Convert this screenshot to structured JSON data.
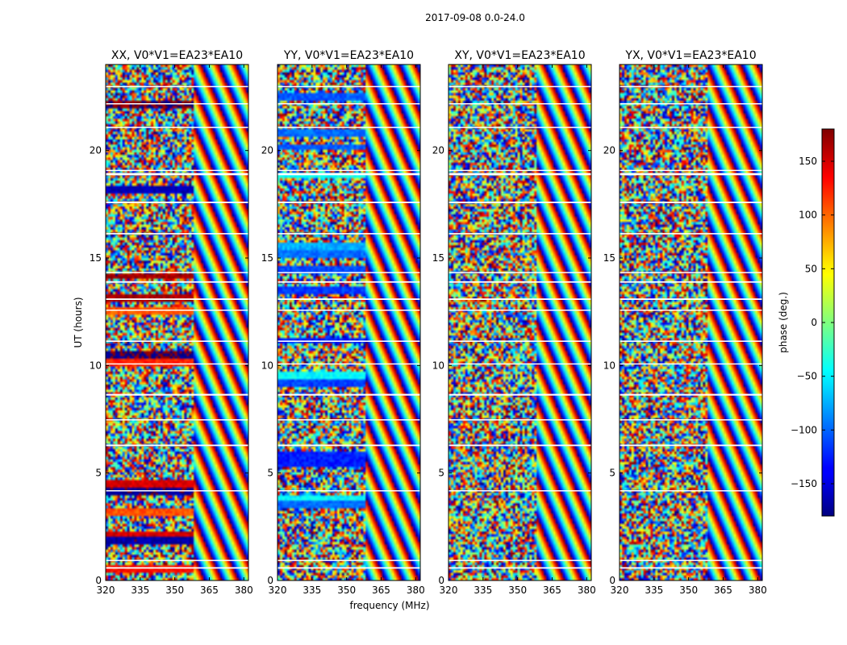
{
  "chart_data": {
    "type": "heatmap",
    "suptitle": "2017-09-08 0.0-24.0",
    "xlabel": "frequency (MHz)",
    "ylabel": "UT (hours)",
    "xlim": [
      320,
      382
    ],
    "ylim": [
      0,
      24
    ],
    "xticks": [
      320,
      335,
      350,
      365,
      380
    ],
    "yticks": [
      0,
      5,
      10,
      15,
      20
    ],
    "panels": [
      {
        "title": "XX, V0*V1=EA23*EA10",
        "pol": "XX"
      },
      {
        "title": "YY, V0*V1=EA23*EA10",
        "pol": "YY"
      },
      {
        "title": "XY, V0*V1=EA23*EA10",
        "pol": "XY"
      },
      {
        "title": "YX, V0*V1=EA23*EA10",
        "pol": "YX"
      }
    ],
    "colorbar": {
      "label": "phase (deg.)",
      "range": [
        -180,
        180
      ],
      "ticks": [
        -150,
        -100,
        -50,
        0,
        50,
        100,
        150
      ],
      "cmap": "jet"
    },
    "flagged_bands_hours": [
      [
        0.55,
        0.62
      ],
      [
        0.92,
        0.96
      ],
      [
        4.15,
        4.2
      ],
      [
        6.25,
        6.32
      ],
      [
        7.45,
        7.5
      ],
      [
        8.6,
        8.68
      ],
      [
        10.05,
        10.1
      ],
      [
        11.1,
        11.16
      ],
      [
        12.55,
        12.6
      ],
      [
        13.05,
        13.12
      ],
      [
        13.85,
        13.92
      ],
      [
        14.3,
        14.35
      ],
      [
        16.1,
        16.16
      ],
      [
        17.55,
        17.62
      ],
      [
        18.85,
        18.95
      ],
      [
        19.05,
        19.1
      ],
      [
        21.05,
        21.1
      ],
      [
        22.15,
        22.2
      ],
      [
        22.95,
        23.0
      ]
    ]
  }
}
